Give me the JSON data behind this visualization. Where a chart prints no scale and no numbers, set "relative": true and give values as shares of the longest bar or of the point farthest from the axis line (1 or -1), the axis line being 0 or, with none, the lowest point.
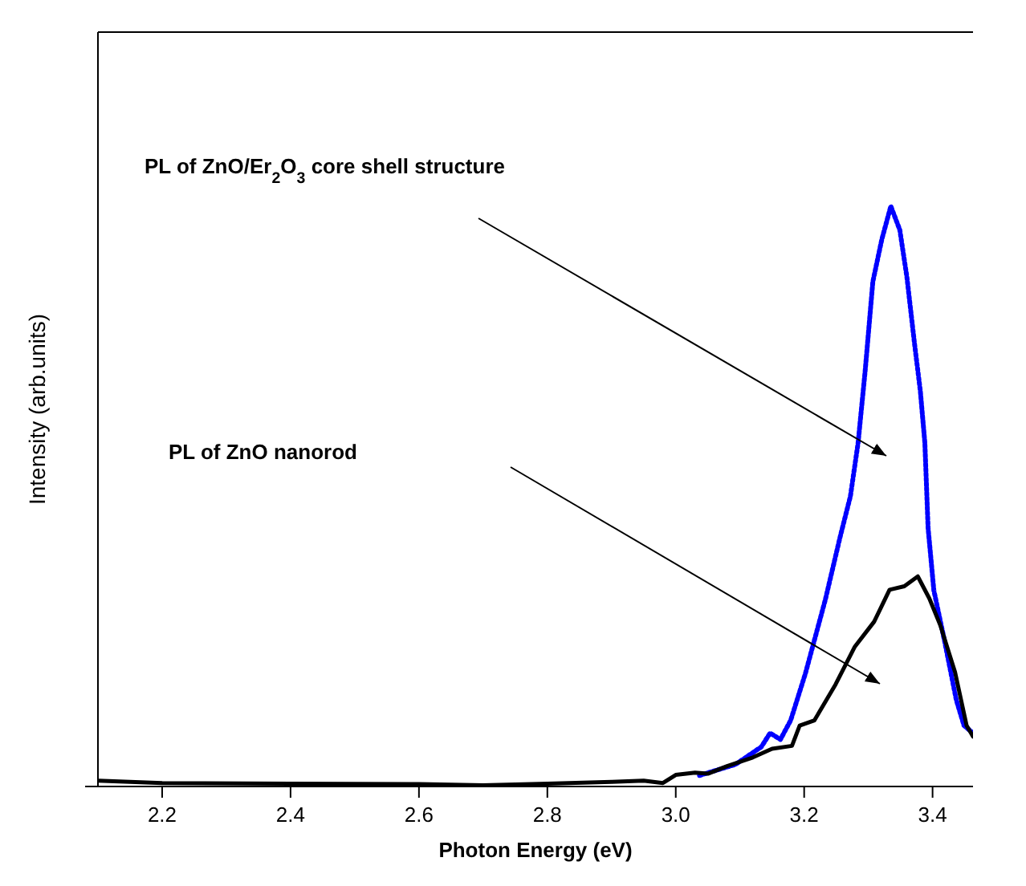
{
  "chart_data": {
    "type": "line",
    "xlabel": "Photon Energy (eV)",
    "ylabel": "Intensity (arb.units)",
    "relative": true,
    "xlim": [
      2.1,
      3.463
    ],
    "xticks": [
      2.2,
      2.4,
      2.6,
      2.8,
      {
        "value": 3,
        "label": "3.0"
      },
      3.2,
      3.4
    ],
    "grid": false,
    "annotations": [
      "PL of ZnO/Er$_{2}$O$_{3}$ core shell structure",
      "PL of ZnO nanorod"
    ],
    "series": [
      {
        "color": "#0000ff",
        "line_style": "dotted",
        "x": [
          3.037,
          3.093,
          3.133,
          3.147,
          3.163,
          3.179,
          3.202,
          3.233,
          3.256,
          3.272,
          3.284,
          3.295,
          3.307,
          3.321,
          3.335,
          3.349,
          3.36,
          3.372,
          3.381,
          3.388,
          3.393,
          3.402,
          3.419,
          3.437,
          3.449,
          3.463
        ],
        "values": [
          0.019,
          0.038,
          0.068,
          0.092,
          0.081,
          0.114,
          0.195,
          0.322,
          0.43,
          0.5,
          0.592,
          0.716,
          0.87,
          0.943,
          1,
          0.959,
          0.878,
          0.762,
          0.681,
          0.592,
          0.446,
          0.338,
          0.249,
          0.149,
          0.105,
          0.092
        ]
      },
      {
        "color": "#000000",
        "line_style": "solid",
        "x": [
          2.1,
          2.2,
          2.4,
          2.6,
          2.7,
          2.8,
          2.9,
          2.95,
          2.98,
          3.0,
          3.03,
          3.05,
          3.08,
          3.12,
          3.15,
          3.181,
          3.193,
          3.216,
          3.249,
          3.279,
          3.309,
          3.333,
          3.356,
          3.377,
          3.395,
          3.412,
          3.435,
          3.453,
          3.463
        ],
        "values": [
          0.01,
          0.006,
          0.005,
          0.004,
          0.002,
          0.005,
          0.008,
          0.01,
          0.006,
          0.02,
          0.024,
          0.022,
          0.035,
          0.05,
          0.065,
          0.07,
          0.105,
          0.114,
          0.176,
          0.241,
          0.284,
          0.339,
          0.345,
          0.362,
          0.324,
          0.278,
          0.197,
          0.105,
          0.086
        ]
      }
    ]
  }
}
